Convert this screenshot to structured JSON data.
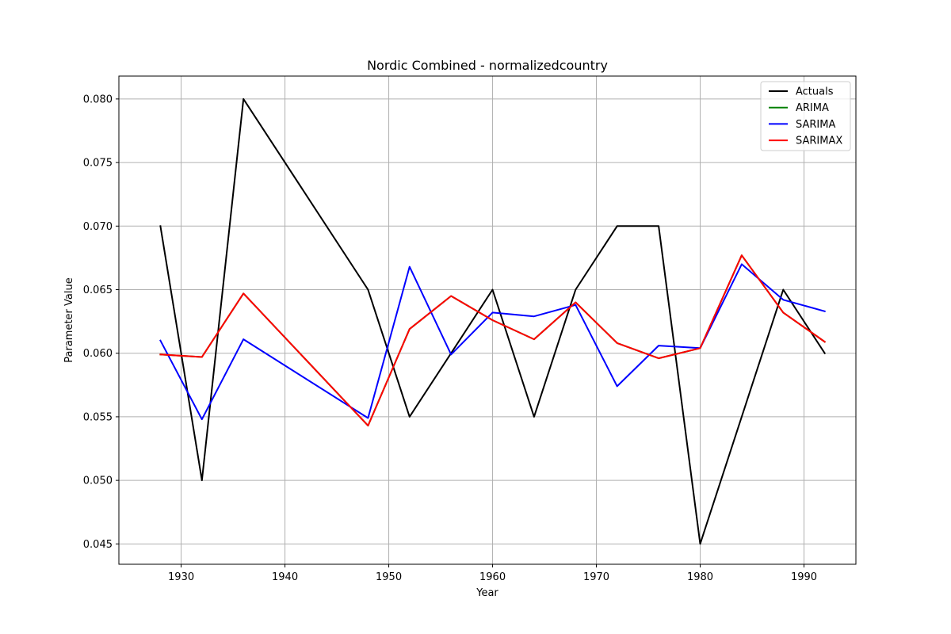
{
  "chart_data": {
    "type": "line",
    "title": "Nordic Combined - normalizedcountry",
    "xlabel": "Year",
    "ylabel": "Parameter Value",
    "xlim": [
      1924,
      1995
    ],
    "ylim": [
      0.0434,
      0.0818
    ],
    "xticks": [
      1930,
      1940,
      1950,
      1960,
      1970,
      1980,
      1990
    ],
    "yticks": [
      0.045,
      0.05,
      0.055,
      0.06,
      0.065,
      0.07,
      0.075,
      0.08
    ],
    "ytick_labels": [
      "0.045",
      "0.050",
      "0.055",
      "0.060",
      "0.065",
      "0.070",
      "0.075",
      "0.080"
    ],
    "grid": true,
    "legend_position": "top-right",
    "x": [
      1928,
      1932,
      1936,
      1948,
      1952,
      1956,
      1960,
      1964,
      1968,
      1972,
      1976,
      1980,
      1984,
      1988,
      1992
    ],
    "series": [
      {
        "name": "Actuals",
        "color": "#000000",
        "values": [
          0.07,
          0.05,
          0.08,
          0.065,
          0.055,
          0.06,
          0.065,
          0.055,
          0.065,
          0.07,
          0.07,
          0.045,
          0.055,
          0.065,
          0.06
        ]
      },
      {
        "name": "ARIMA",
        "color": "#008000",
        "values": [
          0.0599,
          0.0597,
          0.0647,
          0.0543,
          0.0619,
          0.0645,
          0.0626,
          0.0611,
          0.064,
          0.0608,
          0.0596,
          0.0604,
          0.0677,
          0.0632,
          0.0609
        ]
      },
      {
        "name": "SARIMA",
        "color": "#0000ff",
        "values": [
          0.061,
          0.0548,
          0.0611,
          0.0549,
          0.0668,
          0.0599,
          0.0632,
          0.0629,
          0.0638,
          0.0574,
          0.0606,
          0.0604,
          0.067,
          0.0642,
          0.0633
        ]
      },
      {
        "name": "SARIMAX",
        "color": "#ff0000",
        "values": [
          0.0599,
          0.0597,
          0.0647,
          0.0543,
          0.0619,
          0.0645,
          0.0626,
          0.0611,
          0.064,
          0.0608,
          0.0596,
          0.0604,
          0.0677,
          0.0632,
          0.0609
        ]
      }
    ]
  }
}
